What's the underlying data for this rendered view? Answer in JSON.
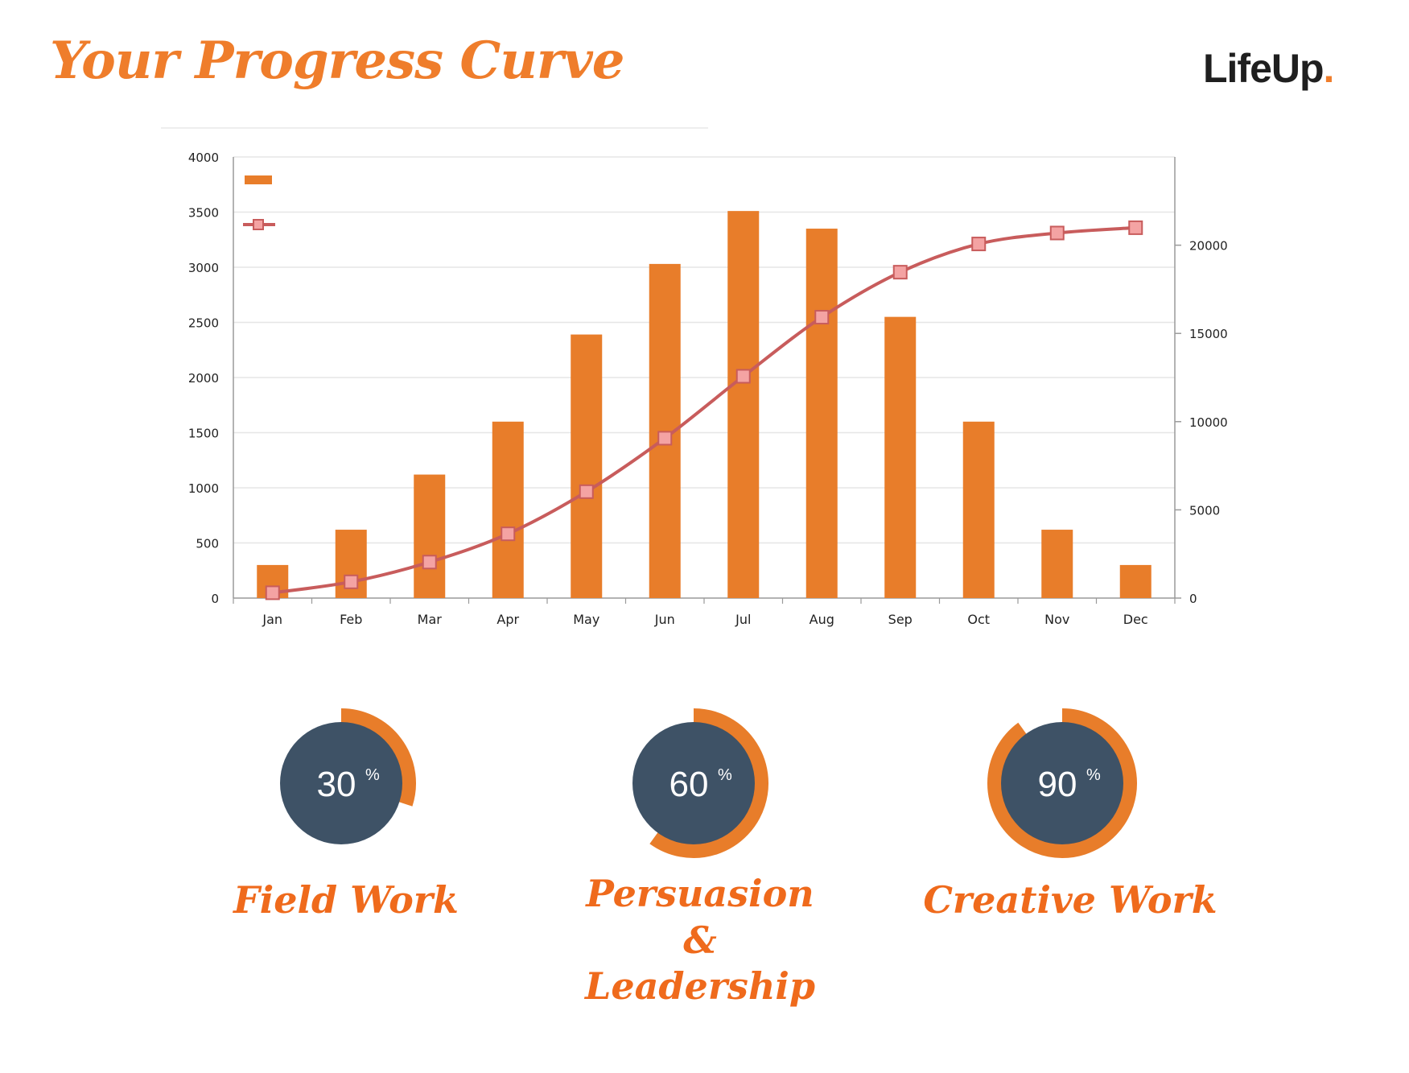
{
  "header": {
    "title": "Your Progress Curve",
    "logo_text": "LifeUp",
    "logo_dot": "."
  },
  "colors": {
    "accent": "#ef7d2b",
    "bar": "#e87d2a",
    "line": "#c85c5c",
    "marker": "#f4a3a3",
    "ring_fill": "#3e5266"
  },
  "chart_data": {
    "type": "bar",
    "categories": [
      "Jan",
      "Feb",
      "Mar",
      "Apr",
      "May",
      "Jun",
      "Jul",
      "Aug",
      "Sep",
      "Oct",
      "Nov",
      "Dec"
    ],
    "series": [
      {
        "type": "bar",
        "axis": "left",
        "values": [
          300,
          620,
          1120,
          1600,
          2390,
          3030,
          3510,
          3350,
          2550,
          1600,
          620,
          300
        ]
      },
      {
        "type": "line",
        "axis": "right",
        "values": [
          300,
          920,
          2040,
          3640,
          6030,
          9060,
          12570,
          15920,
          18470,
          20070,
          20690,
          20990
        ]
      }
    ],
    "left_axis": {
      "ylim": [
        0,
        4000
      ],
      "ticks": [
        "0",
        "500",
        "1000",
        "1500",
        "2000",
        "2500",
        "3000",
        "3500",
        "4000"
      ]
    },
    "right_axis": {
      "ylim": [
        0,
        25000
      ],
      "ticks": [
        "0",
        "5000",
        "10000",
        "15000",
        "20000"
      ]
    },
    "grid": true,
    "legend": "top-left"
  },
  "skills": [
    {
      "value": 30,
      "percent_label": "30",
      "percent_sign": "%",
      "label_lines": [
        "Field Work"
      ]
    },
    {
      "value": 60,
      "percent_label": "60",
      "percent_sign": "%",
      "label_lines": [
        "Persuasion",
        "&",
        "Leadership"
      ]
    },
    {
      "value": 90,
      "percent_label": "90",
      "percent_sign": "%",
      "label_lines": [
        "Creative Work"
      ]
    }
  ]
}
